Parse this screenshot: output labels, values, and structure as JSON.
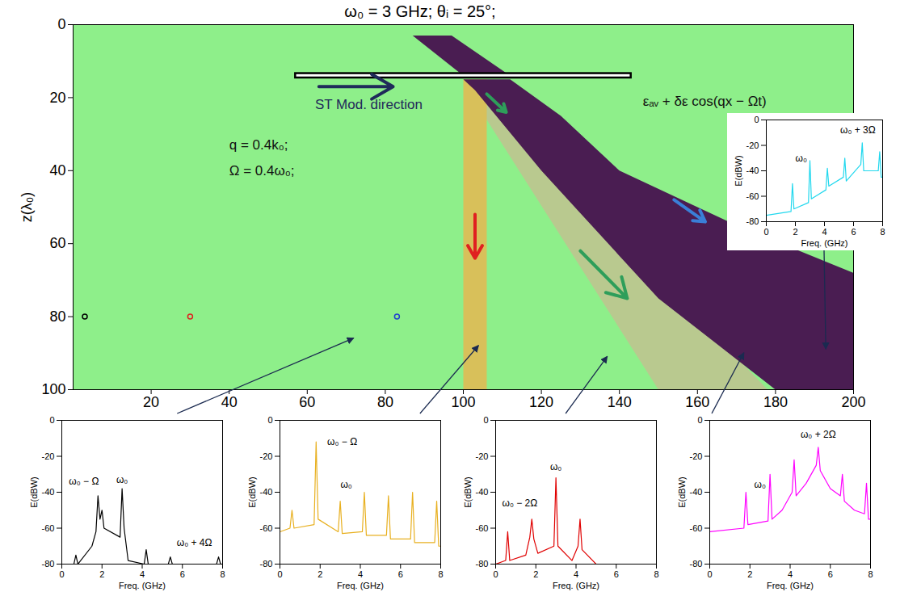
{
  "chart_data": [
    {
      "type": "field_map",
      "title": "ω₀ = 3 GHz;  θᵢ = 25°;",
      "ylabel": "z(λ₀)",
      "color": "#8eef8a",
      "xlim": [
        0,
        200
      ],
      "ylim": [
        100,
        0
      ],
      "xticks": [
        20,
        40,
        60,
        80,
        100,
        120,
        140,
        160,
        180,
        200
      ],
      "yticks": [
        0,
        20,
        40,
        60,
        80,
        100
      ],
      "regions": [
        {
          "color": "#b9c98f",
          "points": [
            [
              100,
              16
            ],
            [
              104,
              18
            ],
            [
              178,
              100
            ],
            [
              150,
              100
            ]
          ]
        },
        {
          "color": "#d8c05a",
          "points": [
            [
              100,
              15
            ],
            [
              106,
              15
            ],
            [
              106,
              100
            ],
            [
              100,
              100
            ]
          ]
        },
        {
          "color": "#4a1d52",
          "points": [
            [
              100,
              15
            ],
            [
              112,
              15
            ],
            [
              125,
              25
            ],
            [
              140,
              40
            ],
            [
              170,
              55
            ],
            [
              200,
              68
            ],
            [
              200,
              100
            ],
            [
              180,
              100
            ],
            [
              150,
              75
            ],
            [
              120,
              40
            ],
            [
              103,
              18
            ]
          ]
        },
        {
          "color": "#4a1d52",
          "points": [
            [
              87,
              3
            ],
            [
              97,
              3
            ],
            [
              112,
              14
            ],
            [
              100,
              14
            ]
          ]
        }
      ],
      "slab": {
        "x": [
          57,
          143
        ],
        "z": [
          13.4,
          14.6
        ]
      },
      "arrows": [
        {
          "color": "#1f2a5a",
          "from": [
            63,
            17
          ],
          "to": [
            82,
            17
          ]
        },
        {
          "color": "#2e9e5a",
          "from": [
            106,
            19
          ],
          "to": [
            111,
            24
          ]
        },
        {
          "color": "#3a7fd8",
          "from": [
            154,
            48
          ],
          "to": [
            162,
            54
          ]
        },
        {
          "color": "#2e9e5a",
          "from": [
            130,
            62
          ],
          "to": [
            142,
            75
          ]
        },
        {
          "color": "#e02020",
          "from": [
            103,
            52
          ],
          "to": [
            103,
            64
          ]
        }
      ],
      "markers": [
        {
          "x": 3,
          "z": 80,
          "color": "#000000"
        },
        {
          "x": 30,
          "z": 80,
          "color": "#e02020"
        },
        {
          "x": 83,
          "z": 80,
          "color": "#2040d0"
        }
      ],
      "annotations": [
        {
          "text": "ST Mod. direction",
          "x": 62,
          "z": 22,
          "color": "#1f2a5a"
        },
        {
          "text": "q = 0.4k₀;",
          "x": 40,
          "z": 33,
          "color": "#111111"
        },
        {
          "text": "Ω = 0.4ω₀;",
          "x": 40,
          "z": 40,
          "color": "#111111"
        },
        {
          "text": "εₐᵥ + δε cos(qx − Ωt)",
          "x": 146,
          "z": 21,
          "color": "#111111"
        }
      ]
    },
    {
      "type": "line",
      "color": "#22d8ee",
      "xlabel": "Freq. (GHz)",
      "ylabel": "E(dBW)",
      "xlim": [
        0,
        8
      ],
      "ylim": [
        -80,
        0
      ],
      "xticks": [
        0,
        2,
        4,
        6,
        8
      ],
      "yticks": [
        0,
        -20,
        -40,
        -60,
        -80
      ],
      "x": [
        0,
        1.7,
        1.8,
        1.9,
        2.9,
        3.0,
        3.1,
        4.1,
        4.2,
        4.3,
        5.3,
        5.4,
        5.5,
        6.5,
        6.6,
        6.7,
        7.7,
        7.8,
        7.9,
        8
      ],
      "values": [
        -75,
        -72,
        -50,
        -70,
        -65,
        -32,
        -62,
        -55,
        -38,
        -52,
        -45,
        -30,
        -48,
        -35,
        -18,
        -40,
        -40,
        -25,
        -45,
        -45
      ],
      "annotations": [
        {
          "text": "ω₀",
          "x": 2.4,
          "y": -30
        },
        {
          "text": "ω₀ + 3Ω",
          "x": 6.3,
          "y": -8
        }
      ],
      "probe": [
        193,
        89
      ]
    },
    {
      "type": "line",
      "color": "#000000",
      "xlabel": "Freq. (GHz)",
      "ylabel": "E(dBW)",
      "xlim": [
        0,
        8
      ],
      "ylim": [
        -80,
        0
      ],
      "xticks": [
        0,
        2,
        4,
        6,
        8
      ],
      "yticks": [
        0,
        -20,
        -40,
        -60,
        -80
      ],
      "x": [
        0,
        0.6,
        0.7,
        0.8,
        1.5,
        1.7,
        1.8,
        1.9,
        2.0,
        2.1,
        2.9,
        3.0,
        3.1,
        3.3,
        4.1,
        4.2,
        4.3,
        5.3,
        5.4,
        5.5,
        7.7,
        7.8,
        7.9,
        8
      ],
      "values": [
        -80,
        -80,
        -75,
        -80,
        -70,
        -62,
        -42,
        -55,
        -50,
        -60,
        -65,
        -38,
        -60,
        -78,
        -80,
        -72,
        -80,
        -80,
        -76,
        -80,
        -80,
        -76,
        -80,
        -80
      ],
      "annotations": [
        {
          "text": "ω₀ − Ω",
          "x": 1.1,
          "y": -34
        },
        {
          "text": "ω₀",
          "x": 3.0,
          "y": -33
        },
        {
          "text": "ω₀ + 4Ω",
          "x": 6.6,
          "y": -68
        }
      ],
      "probe": [
        72,
        86
      ]
    },
    {
      "type": "line",
      "color": "#e8b020",
      "xlabel": "Freq. (GHz)",
      "ylabel": "E(dBW)",
      "xlim": [
        0,
        8
      ],
      "ylim": [
        -80,
        0
      ],
      "xticks": [
        0,
        2,
        4,
        6,
        8
      ],
      "yticks": [
        0,
        -20,
        -40,
        -60,
        -80
      ],
      "x": [
        0,
        0.5,
        0.6,
        0.7,
        1.7,
        1.8,
        1.9,
        2.9,
        3.0,
        3.1,
        4.1,
        4.2,
        4.3,
        5.3,
        5.4,
        5.5,
        6.5,
        6.6,
        6.7,
        7.7,
        7.8,
        7.9,
        8
      ],
      "values": [
        -62,
        -60,
        -50,
        -60,
        -58,
        -12,
        -55,
        -62,
        -45,
        -63,
        -62,
        -40,
        -64,
        -64,
        -42,
        -66,
        -66,
        -40,
        -68,
        -68,
        -45,
        -70,
        -70
      ],
      "annotations": [
        {
          "text": "ω₀ − Ω",
          "x": 3.1,
          "y": -12
        },
        {
          "text": "ω₀",
          "x": 3.3,
          "y": -36
        }
      ],
      "probe": [
        104,
        88
      ]
    },
    {
      "type": "line",
      "color": "#e00000",
      "xlabel": "Freq. (GHz)",
      "ylabel": "E(dBW)",
      "xlim": [
        0,
        8
      ],
      "ylim": [
        -80,
        0
      ],
      "xticks": [
        0,
        2,
        4,
        6,
        8
      ],
      "yticks": [
        0,
        -20,
        -40,
        -60,
        -80
      ],
      "x": [
        0,
        0.5,
        0.6,
        0.7,
        1.5,
        1.7,
        1.8,
        1.9,
        2.1,
        2.9,
        3.0,
        3.1,
        3.8,
        4.1,
        4.2,
        4.3,
        5.0,
        8
      ],
      "values": [
        -80,
        -78,
        -62,
        -78,
        -75,
        -65,
        -55,
        -66,
        -74,
        -70,
        -32,
        -70,
        -78,
        -70,
        -55,
        -72,
        -80,
        -80
      ],
      "annotations": [
        {
          "text": "ω₀",
          "x": 3.0,
          "y": -26
        },
        {
          "text": "ω₀ − 2Ω",
          "x": 1.2,
          "y": -46
        }
      ],
      "probe": [
        137,
        91
      ]
    },
    {
      "type": "line",
      "color": "#ff00ff",
      "xlabel": "Freq. (GHz)",
      "ylabel": "E(dBW)",
      "xlim": [
        0,
        8
      ],
      "ylim": [
        -80,
        0
      ],
      "xticks": [
        0,
        2,
        4,
        6,
        8
      ],
      "yticks": [
        0,
        -20,
        -40,
        -60,
        -80
      ],
      "x": [
        0,
        1.7,
        1.8,
        1.9,
        2.9,
        3.0,
        3.1,
        3.6,
        4.1,
        4.2,
        4.3,
        4.8,
        5.3,
        5.4,
        5.5,
        6.0,
        6.5,
        6.6,
        6.7,
        7.2,
        7.7,
        7.8,
        7.9,
        8
      ],
      "values": [
        -62,
        -60,
        -40,
        -58,
        -56,
        -30,
        -55,
        -50,
        -40,
        -22,
        -42,
        -35,
        -25,
        -15,
        -28,
        -38,
        -42,
        -30,
        -45,
        -50,
        -52,
        -35,
        -55,
        -55
      ],
      "annotations": [
        {
          "text": "ω₀",
          "x": 2.5,
          "y": -36
        },
        {
          "text": "ω₀ + 2Ω",
          "x": 5.4,
          "y": -8
        }
      ],
      "probe": [
        172,
        90
      ]
    }
  ]
}
